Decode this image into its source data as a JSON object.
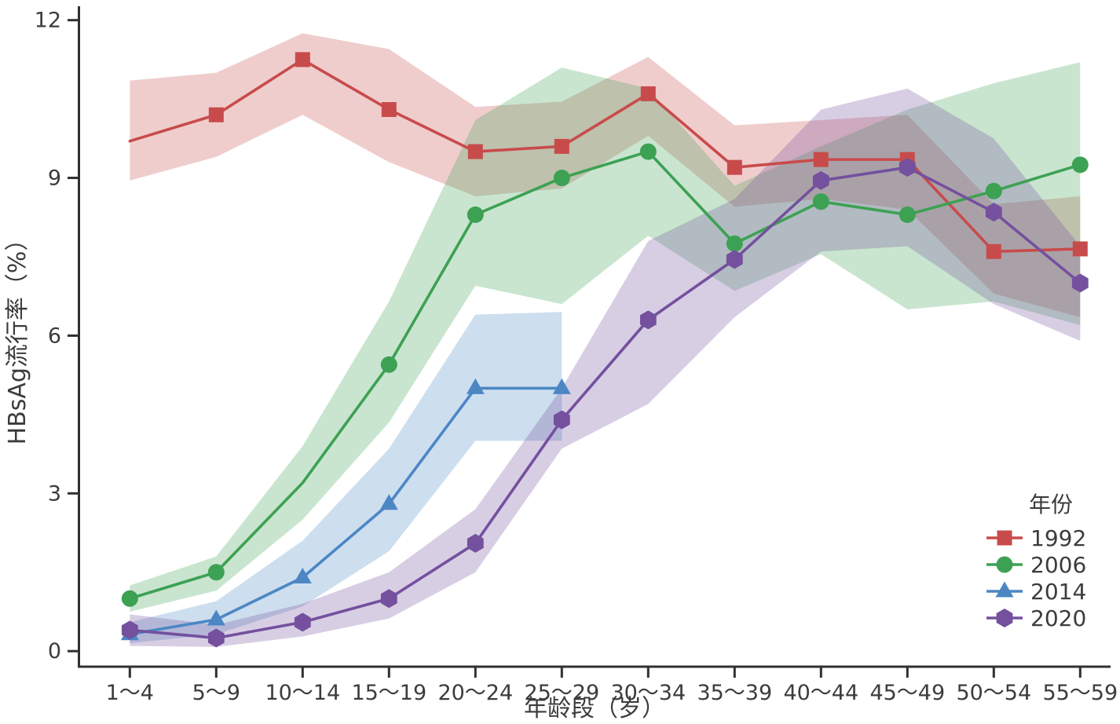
{
  "figure": {
    "background": "#ffffff",
    "axis_color": "#303030",
    "text_color": "#3c3c3c",
    "band_opacity": 0.28
  },
  "chart_data": {
    "type": "line",
    "title": "",
    "xlabel": "年龄段（岁）",
    "ylabel": "HBsAg流行率（%）",
    "categories": [
      "1～4",
      "5～9",
      "10～14",
      "15～19",
      "20～24",
      "25～29",
      "30～34",
      "35～39",
      "40～44",
      "45～49",
      "50～54",
      "55～59"
    ],
    "yticks": [
      0,
      3,
      6,
      9,
      12
    ],
    "ylim": [
      0,
      12.3
    ],
    "grid": false,
    "legend_title": "年份",
    "legend_position": "lower right",
    "series": [
      {
        "name": "1992",
        "color": "#C84B4B",
        "marker": "square",
        "marker_skip": [
          0
        ],
        "values": [
          9.7,
          10.2,
          11.25,
          10.3,
          9.5,
          9.6,
          10.6,
          9.2,
          9.35,
          9.35,
          7.6,
          7.65
        ],
        "ci_lower": [
          8.95,
          9.4,
          10.2,
          9.3,
          8.65,
          8.8,
          9.8,
          8.45,
          8.6,
          8.4,
          6.8,
          6.35
        ],
        "ci_upper": [
          10.85,
          11.0,
          11.75,
          11.45,
          10.35,
          10.45,
          11.3,
          10.0,
          10.1,
          10.2,
          8.5,
          8.65
        ]
      },
      {
        "name": "2006",
        "color": "#3DA154",
        "marker": "circle",
        "marker_skip": [
          2
        ],
        "values": [
          1.0,
          1.5,
          3.2,
          5.45,
          8.3,
          9.0,
          9.5,
          7.75,
          8.55,
          8.3,
          8.75,
          9.25
        ],
        "ci_lower": [
          0.75,
          1.15,
          2.5,
          4.35,
          6.95,
          6.6,
          7.9,
          6.85,
          7.55,
          6.5,
          6.65,
          6.2
        ],
        "ci_upper": [
          1.25,
          1.8,
          3.9,
          6.65,
          10.1,
          11.1,
          10.7,
          8.85,
          9.6,
          10.3,
          10.8,
          11.2
        ]
      },
      {
        "name": "2014",
        "color": "#4C87C4",
        "marker": "triangle",
        "marker_skip": [],
        "values": [
          0.32,
          0.6,
          1.4,
          2.8,
          5.0,
          5.0
        ],
        "ci_lower": [
          0.15,
          0.32,
          0.85,
          1.9,
          4.0,
          4.0
        ],
        "ci_upper": [
          0.55,
          0.95,
          2.1,
          3.85,
          6.4,
          6.45
        ]
      },
      {
        "name": "2020",
        "color": "#74509E",
        "marker": "hexagon",
        "marker_skip": [],
        "values": [
          0.4,
          0.25,
          0.55,
          1.0,
          2.05,
          4.4,
          6.3,
          7.45,
          8.95,
          9.2,
          8.35,
          7.0
        ],
        "ci_lower": [
          0.1,
          0.08,
          0.28,
          0.62,
          1.5,
          3.85,
          4.7,
          6.35,
          7.6,
          7.7,
          6.6,
          5.9
        ],
        "ci_upper": [
          0.7,
          0.5,
          0.9,
          1.5,
          2.7,
          5.0,
          7.8,
          8.6,
          10.3,
          10.7,
          9.75,
          7.7
        ]
      }
    ]
  }
}
